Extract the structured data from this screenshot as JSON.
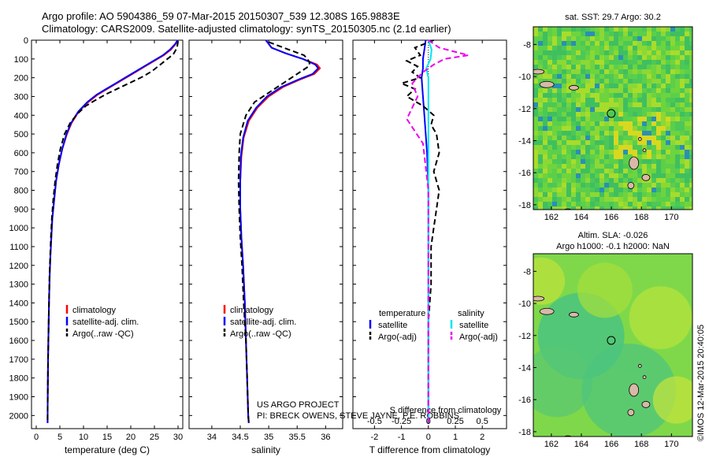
{
  "header": {
    "title_line1": "Argo profile: AO 5904386_59 07-Mar-2015 20150307_539 12.308S 165.9883E",
    "title_line2": "Climatology: CARS2009. Satellite-adjusted climatology: synTS_20150305.nc (2.1d earlier)"
  },
  "colors": {
    "climatology": "#ff0000",
    "satellite": "#0000ff",
    "argo": "#000000",
    "sal_satellite": "#00e5ee",
    "sal_argo": "#ee00ee"
  },
  "chart_data": [
    {
      "type": "line",
      "name": "temperature",
      "xlabel": "temperature (deg C)",
      "ylabel": "",
      "xlim": [
        -1,
        31
      ],
      "ylim": [
        2070,
        0
      ],
      "xticks": [
        0,
        5,
        10,
        15,
        20,
        25,
        30
      ],
      "yticks": [
        0,
        100,
        200,
        300,
        400,
        500,
        600,
        700,
        800,
        900,
        1000,
        1100,
        1200,
        1300,
        1400,
        1500,
        1600,
        1700,
        1800,
        1900,
        2000
      ],
      "legend": [
        "climatology",
        "satellite-adj. clim.",
        "Argo(..raw -QC)"
      ],
      "series": [
        {
          "name": "climatology",
          "style": "solid",
          "color": "#ff0000",
          "x": [
            30.0,
            29.5,
            28.5,
            27,
            25,
            23,
            21,
            19,
            17,
            15,
            13,
            11,
            9,
            7.5,
            6.5,
            5.5,
            4.8,
            4.2,
            3.8,
            3.4,
            3.2,
            3.0,
            2.85,
            2.7,
            2.6,
            2.5,
            2.45,
            2.42,
            2.4
          ],
          "y": [
            0,
            20,
            50,
            80,
            110,
            140,
            170,
            200,
            230,
            260,
            290,
            330,
            380,
            440,
            500,
            580,
            660,
            750,
            850,
            950,
            1050,
            1150,
            1250,
            1400,
            1550,
            1700,
            1850,
            1950,
            2040
          ]
        },
        {
          "name": "satellite-adj. clim.",
          "style": "solid",
          "color": "#0000ff",
          "x": [
            29.9,
            29.4,
            28.3,
            26.8,
            24.8,
            22.8,
            20.8,
            18.8,
            16.8,
            14.8,
            12.8,
            10.8,
            8.9,
            7.4,
            6.4,
            5.5,
            4.8,
            4.2,
            3.8,
            3.4,
            3.2,
            3.0,
            2.85,
            2.7,
            2.6,
            2.5,
            2.45,
            2.42,
            2.4
          ],
          "y": [
            0,
            20,
            50,
            80,
            110,
            140,
            170,
            200,
            230,
            260,
            290,
            330,
            380,
            440,
            500,
            580,
            660,
            750,
            850,
            950,
            1050,
            1150,
            1250,
            1400,
            1550,
            1700,
            1850,
            1950,
            2040
          ]
        },
        {
          "name": "Argo(..raw -QC)",
          "style": "dash",
          "color": "#000000",
          "x": [
            30.0,
            29.8,
            29.0,
            27.5,
            26.0,
            24.5,
            22.5,
            20.0,
            17.5,
            15.0,
            12.5,
            10.5,
            8.8,
            7.2,
            6.0,
            5.1,
            4.5,
            4.0,
            3.6,
            3.3,
            3.1,
            2.95,
            2.8,
            2.7,
            2.6,
            2.5,
            2.45,
            2.42,
            2.4
          ],
          "y": [
            5,
            40,
            75,
            105,
            135,
            165,
            195,
            225,
            255,
            285,
            320,
            350,
            390,
            440,
            500,
            580,
            660,
            750,
            850,
            950,
            1050,
            1150,
            1250,
            1400,
            1550,
            1700,
            1850,
            1950,
            2040
          ]
        }
      ]
    },
    {
      "type": "line",
      "name": "salinity",
      "xlabel": "salinity",
      "xlim": [
        33.6,
        36.3
      ],
      "ylim": [
        2070,
        0
      ],
      "xticks": [
        34,
        34.5,
        35,
        35.5,
        36
      ],
      "legend": [
        "climatology",
        "satellite-adj. clim.",
        "Argo(..raw -QC)"
      ],
      "annotation": [
        "US ARGO PROJECT",
        "PI: BRECK OWENS, STEVE JAYNE, P.E. ROBBINS"
      ],
      "series": [
        {
          "name": "climatology",
          "style": "solid",
          "color": "#ff0000",
          "x": [
            34.95,
            35.05,
            35.3,
            35.6,
            35.85,
            35.9,
            35.8,
            35.55,
            35.25,
            35.0,
            34.8,
            34.65,
            34.56,
            34.52,
            34.5,
            34.5,
            34.52,
            34.55,
            34.58,
            34.6,
            34.62,
            34.63,
            34.64,
            34.65
          ],
          "y": [
            0,
            40,
            70,
            100,
            130,
            150,
            180,
            210,
            250,
            300,
            360,
            430,
            520,
            620,
            750,
            900,
            1050,
            1200,
            1400,
            1600,
            1800,
            1900,
            2000,
            2040
          ]
        },
        {
          "name": "satellite-adj. clim.",
          "style": "solid",
          "color": "#0000ff",
          "x": [
            34.95,
            35.05,
            35.3,
            35.6,
            35.82,
            35.87,
            35.77,
            35.52,
            35.22,
            34.97,
            34.78,
            34.63,
            34.55,
            34.51,
            34.5,
            34.5,
            34.52,
            34.55,
            34.58,
            34.6,
            34.62,
            34.63,
            34.64,
            34.65
          ],
          "y": [
            0,
            40,
            70,
            100,
            130,
            150,
            180,
            210,
            250,
            300,
            360,
            430,
            520,
            620,
            750,
            900,
            1050,
            1200,
            1400,
            1600,
            1800,
            1900,
            2000,
            2040
          ]
        },
        {
          "name": "Argo(..raw -QC)",
          "style": "dash",
          "color": "#000000",
          "x": [
            35.0,
            35.35,
            35.62,
            35.68,
            35.72,
            35.7,
            35.55,
            35.3,
            35.0,
            34.75,
            34.6,
            34.55,
            34.5,
            34.48,
            34.47,
            34.48,
            34.5,
            34.53,
            34.56,
            34.6,
            34.62,
            34.63,
            34.64,
            34.65
          ],
          "y": [
            10,
            50,
            80,
            100,
            120,
            140,
            170,
            220,
            280,
            330,
            400,
            450,
            500,
            600,
            750,
            900,
            1050,
            1200,
            1400,
            1600,
            1800,
            1900,
            2000,
            2040
          ]
        }
      ]
    },
    {
      "type": "line",
      "name": "difference",
      "xlabel": "T difference from climatology",
      "xlabel_top": "S difference from climatology",
      "xlim": [
        -2.8,
        2.9
      ],
      "ylim": [
        2070,
        0
      ],
      "xticks": [
        -2,
        -1,
        0,
        1,
        2
      ],
      "xtick_labels": [
        "-2",
        "-1",
        "0",
        "1",
        "2"
      ],
      "xticks_top": [
        -0.5,
        -0.25,
        0,
        0.25,
        0.5
      ],
      "legend_headers": [
        "temperature",
        "salinity"
      ],
      "legend": [
        "satellite",
        "Argo(-adj)",
        "satellite",
        "Argo(-adj)"
      ],
      "series": [
        {
          "name": "T satellite",
          "style": "solid",
          "color": "#0000ff",
          "x": [
            -0.1,
            -0.15,
            -0.2,
            -0.2,
            -0.25,
            -0.2,
            -0.15,
            -0.1,
            -0.05,
            0,
            0,
            0,
            0
          ],
          "y": [
            0,
            50,
            100,
            150,
            200,
            300,
            400,
            500,
            600,
            800,
            1200,
            1600,
            2040
          ]
        },
        {
          "name": "T Argo(-adj)",
          "style": "dash",
          "color": "#000000",
          "x": [
            0.2,
            -0.5,
            -0.3,
            -0.8,
            -0.4,
            -0.6,
            -0.3,
            -1.0,
            -0.5,
            -0.8,
            -0.2,
            0.2,
            0.1,
            0.3,
            0.4,
            0.2,
            0.4,
            0.3,
            0.2,
            0.1,
            0.1,
            0,
            0,
            0
          ],
          "y": [
            0,
            40,
            80,
            110,
            140,
            170,
            200,
            230,
            260,
            300,
            350,
            400,
            450,
            500,
            600,
            700,
            800,
            900,
            1000,
            1100,
            1300,
            1500,
            1800,
            2040
          ]
        },
        {
          "name": "S satellite",
          "style": "solid",
          "color": "#00e5ee",
          "x": [
            0,
            0.03,
            0.02,
            -0.02,
            0,
            0,
            0,
            0,
            0,
            0,
            0
          ],
          "y": [
            0,
            50,
            100,
            150,
            200,
            300,
            500,
            800,
            1200,
            1600,
            2040
          ]
        },
        {
          "name": "S Argo(-adj)",
          "style": "dash",
          "color": "#ee00ee",
          "x": [
            0,
            0.1,
            0.37,
            0.15,
            0.05,
            -0.05,
            -0.15,
            -0.1,
            -0.2,
            -0.05,
            0,
            0,
            0
          ],
          "y": [
            0,
            40,
            80,
            100,
            130,
            170,
            230,
            300,
            420,
            550,
            800,
            1200,
            2040
          ]
        }
      ]
    },
    {
      "type": "heatmap",
      "name": "sst-map",
      "title": "sat. SST: 29.7 Argo: 30.2",
      "xlim": [
        160.8,
        171.4
      ],
      "ylim": [
        -18.3,
        -6.9
      ],
      "xticks": [
        162,
        164,
        166,
        168,
        170
      ],
      "yticks": [
        -8,
        -10,
        -12,
        -14,
        -16,
        -18
      ],
      "argo_position": {
        "lon": 165.9883,
        "lat": -12.308
      }
    },
    {
      "type": "heatmap",
      "name": "sla-map",
      "title": "Altim. SLA: -0.026",
      "subtitle": "Argo h1000: -0.1 h2000: NaN",
      "xlim": [
        160.8,
        171.4
      ],
      "ylim": [
        -18.3,
        -6.9
      ],
      "xticks": [
        162,
        164,
        166,
        168,
        170
      ],
      "yticks": [
        -8,
        -10,
        -12,
        -14,
        -16,
        -18
      ],
      "argo_position": {
        "lon": 165.9883,
        "lat": -12.308
      }
    }
  ],
  "footer": {
    "credit": "©IMOS 12-Mar-2015 20:40:05"
  }
}
